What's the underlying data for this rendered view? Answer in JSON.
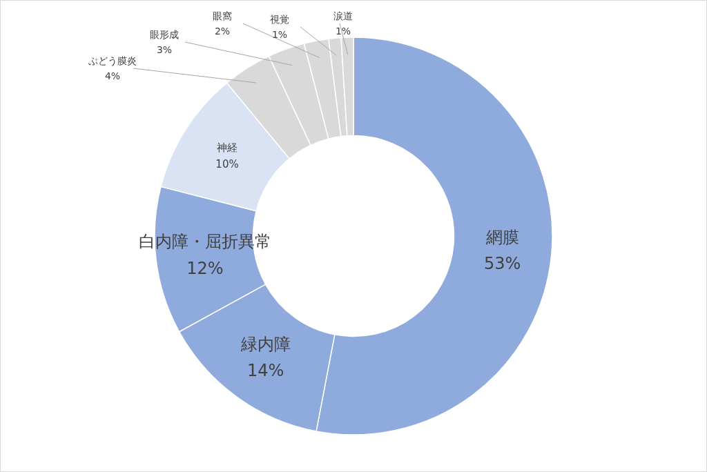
{
  "chart_data": {
    "type": "donut",
    "categories": [
      "網膜",
      "緑内障",
      "白内障・屈折異常",
      "神経",
      "ぶどう膜炎",
      "眼形成",
      "眼窩",
      "視覚",
      "涙道"
    ],
    "values": [
      53,
      14,
      12,
      10,
      4,
      3,
      2,
      1,
      1
    ],
    "value_labels": [
      "53%",
      "14%",
      "12%",
      "10%",
      "4%",
      "3%",
      "2%",
      "1%",
      "1%"
    ],
    "colors": [
      "#8faadc",
      "#8faadc",
      "#8faadc",
      "#dae3f3",
      "#d9d9d9",
      "#d9d9d9",
      "#d9d9d9",
      "#d9d9d9",
      "#d9d9d9"
    ]
  }
}
